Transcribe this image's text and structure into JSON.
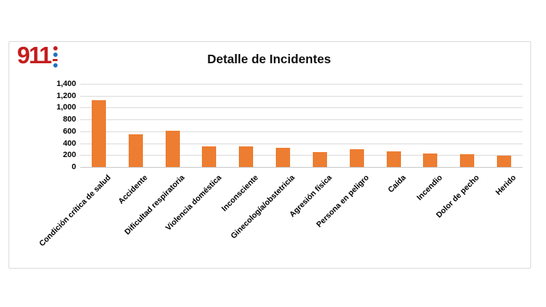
{
  "logo": {
    "text": "911",
    "red": "#c41d1d",
    "blue": "#1f6fbf"
  },
  "chart_data": {
    "type": "bar",
    "title": "Detalle de Incidentes",
    "categories": [
      "Condición crítica de salud",
      "Accidente",
      "Dificultad respiratoria",
      "Violencia doméstica",
      "Inconsciente",
      "Ginecología/obstetricia",
      "Agresión física",
      "Persona en peligro",
      "Caída",
      "Incendio",
      "Dolor de pecho",
      "Herido"
    ],
    "values": [
      1125,
      545,
      610,
      350,
      350,
      320,
      255,
      300,
      265,
      230,
      210,
      195
    ],
    "xlabel": "",
    "ylabel": "",
    "ylim": [
      0,
      1400
    ],
    "ytick_step": 200,
    "ytick_labels": [
      "0",
      "200",
      "400",
      "600",
      "800",
      "1,000",
      "1,200",
      "1,400"
    ],
    "grid": "horizontal",
    "legend": "none",
    "bar_color": "#ed7d31",
    "gridline_color": "#d9d9d9"
  }
}
